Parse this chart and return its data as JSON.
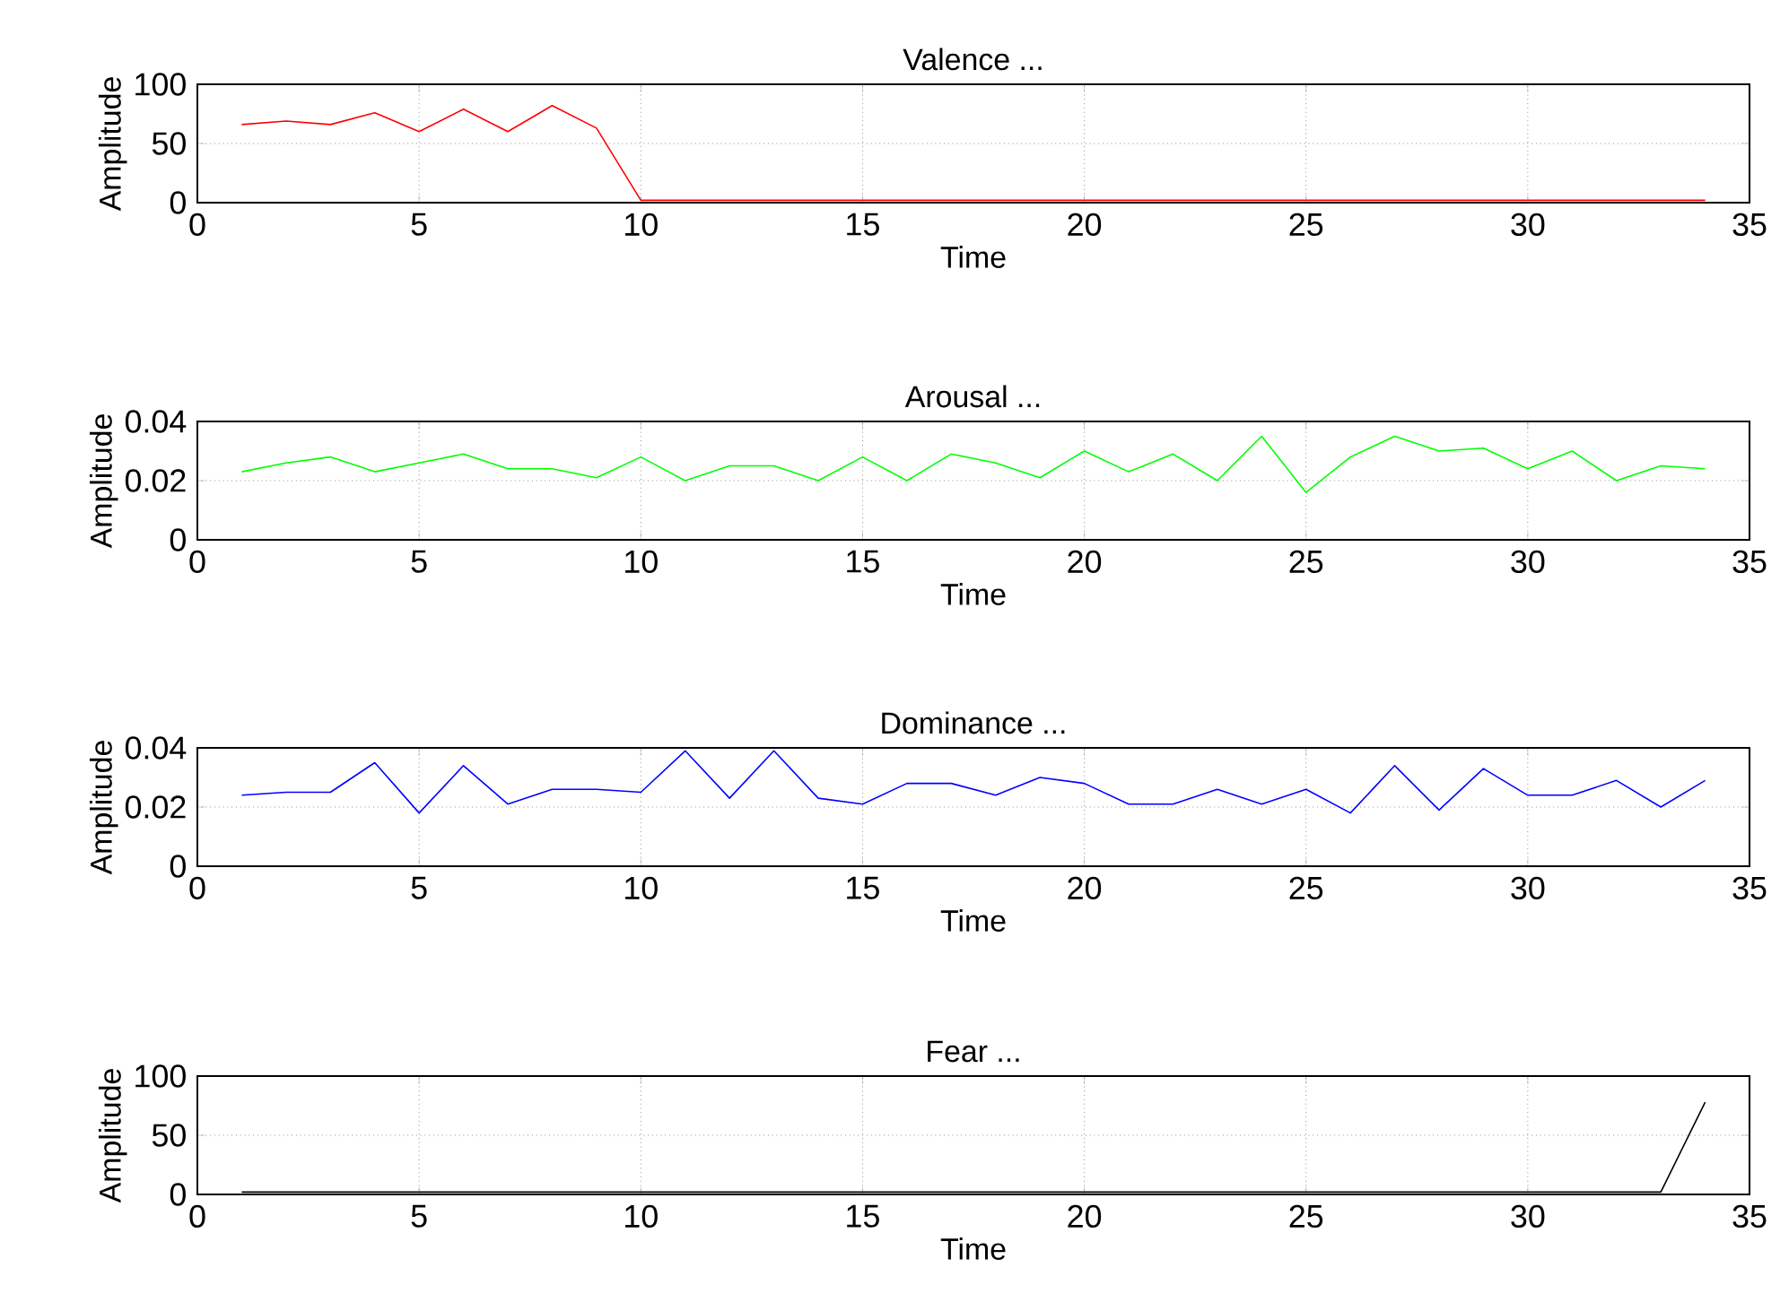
{
  "chart_data": [
    {
      "type": "line",
      "title": "Valence ...",
      "xlabel": "Time",
      "ylabel": "Amplitude",
      "color": "#ff0000",
      "grid": true,
      "xlim": [
        0,
        35
      ],
      "xticks": [
        0,
        5,
        10,
        15,
        20,
        25,
        30,
        35
      ],
      "ylim": [
        0,
        100
      ],
      "yticks": [
        0,
        50,
        100
      ],
      "x": [
        1,
        2,
        3,
        4,
        5,
        6,
        7,
        8,
        9,
        10,
        11,
        12,
        13,
        14,
        15,
        16,
        17,
        18,
        19,
        20,
        21,
        22,
        23,
        24,
        25,
        26,
        27,
        28,
        29,
        30,
        31,
        32,
        33,
        34
      ],
      "values": [
        66,
        69,
        66,
        76,
        60,
        79,
        60,
        82,
        63,
        2,
        2,
        2,
        2,
        2,
        2,
        2,
        2,
        2,
        2,
        2,
        2,
        2,
        2,
        2,
        2,
        2,
        2,
        2,
        2,
        2,
        2,
        2,
        2,
        2
      ]
    },
    {
      "type": "line",
      "title": "Arousal ...",
      "xlabel": "Time",
      "ylabel": "Amplitude",
      "color": "#00ff00",
      "grid": true,
      "xlim": [
        0,
        35
      ],
      "xticks": [
        0,
        5,
        10,
        15,
        20,
        25,
        30,
        35
      ],
      "ylim": [
        0,
        0.04
      ],
      "yticks": [
        0,
        0.02,
        0.04
      ],
      "x": [
        1,
        2,
        3,
        4,
        5,
        6,
        7,
        8,
        9,
        10,
        11,
        12,
        13,
        14,
        15,
        16,
        17,
        18,
        19,
        20,
        21,
        22,
        23,
        24,
        25,
        26,
        27,
        28,
        29,
        30,
        31,
        32,
        33,
        34
      ],
      "values": [
        0.023,
        0.026,
        0.028,
        0.023,
        0.026,
        0.029,
        0.024,
        0.024,
        0.021,
        0.028,
        0.02,
        0.025,
        0.025,
        0.02,
        0.028,
        0.02,
        0.029,
        0.026,
        0.021,
        0.03,
        0.023,
        0.029,
        0.02,
        0.035,
        0.016,
        0.028,
        0.035,
        0.03,
        0.031,
        0.024,
        0.03,
        0.02,
        0.025,
        0.024
      ]
    },
    {
      "type": "line",
      "title": "Dominance ...",
      "xlabel": "Time",
      "ylabel": "Amplitude",
      "color": "#0000ff",
      "grid": true,
      "xlim": [
        0,
        35
      ],
      "xticks": [
        0,
        5,
        10,
        15,
        20,
        25,
        30,
        35
      ],
      "ylim": [
        0,
        0.04
      ],
      "yticks": [
        0,
        0.02,
        0.04
      ],
      "x": [
        1,
        2,
        3,
        4,
        5,
        6,
        7,
        8,
        9,
        10,
        11,
        12,
        13,
        14,
        15,
        16,
        17,
        18,
        19,
        20,
        21,
        22,
        23,
        24,
        25,
        26,
        27,
        28,
        29,
        30,
        31,
        32,
        33,
        34
      ],
      "values": [
        0.024,
        0.025,
        0.025,
        0.035,
        0.018,
        0.034,
        0.021,
        0.026,
        0.026,
        0.025,
        0.039,
        0.023,
        0.039,
        0.023,
        0.021,
        0.028,
        0.028,
        0.024,
        0.03,
        0.028,
        0.021,
        0.021,
        0.026,
        0.021,
        0.026,
        0.018,
        0.034,
        0.019,
        0.033,
        0.024,
        0.024,
        0.029,
        0.02,
        0.029
      ]
    },
    {
      "type": "line",
      "title": "Fear ...",
      "xlabel": "Time",
      "ylabel": "Amplitude",
      "color": "#000000",
      "grid": true,
      "xlim": [
        0,
        35
      ],
      "xticks": [
        0,
        5,
        10,
        15,
        20,
        25,
        30,
        35
      ],
      "ylim": [
        0,
        100
      ],
      "yticks": [
        0,
        50,
        100
      ],
      "x": [
        1,
        2,
        3,
        4,
        5,
        6,
        7,
        8,
        9,
        10,
        11,
        12,
        13,
        14,
        15,
        16,
        17,
        18,
        19,
        20,
        21,
        22,
        23,
        24,
        25,
        26,
        27,
        28,
        29,
        30,
        31,
        32,
        33,
        34
      ],
      "values": [
        2,
        2,
        2,
        2,
        2,
        2,
        2,
        2,
        2,
        2,
        2,
        2,
        2,
        2,
        2,
        2,
        2,
        2,
        2,
        2,
        2,
        2,
        2,
        2,
        2,
        2,
        2,
        2,
        2,
        2,
        2,
        2,
        2,
        78
      ]
    }
  ]
}
